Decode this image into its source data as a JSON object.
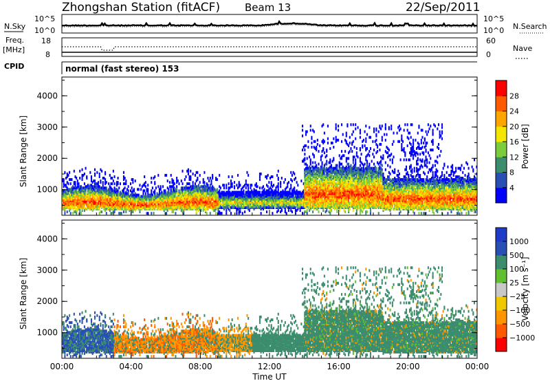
{
  "header": {
    "station": "Zhongshan Station (fitACF)",
    "beam": "Beam 13",
    "date": "22/Sep/2011"
  },
  "top_panels": {
    "nsky_label": "N.Sky",
    "nsky_ticks": [
      "10^5",
      "10^0"
    ],
    "nsearch_label": "N.Search",
    "nsearch_ticks": [
      "10^5",
      "10^0"
    ],
    "freq_label_1": "Freq.",
    "freq_label_2": "[MHz]",
    "freq_ticks": [
      "18",
      "8"
    ],
    "nave_label": "Nave",
    "nave_ticks": [
      "60",
      "0"
    ],
    "cpid_label": "CPID",
    "cpid_text": "normal (fast stereo) 153"
  },
  "chart_data": [
    {
      "type": "heatmap",
      "name": "power-panel",
      "ylabel": "Slant Range [km]",
      "yticks": [
        "4000",
        "3000",
        "2000",
        "1000"
      ],
      "ylim": [
        180,
        4600
      ],
      "xlim": [
        0,
        24
      ],
      "colorbar_label": "Power [dB]",
      "colorbar_ticks": [
        "28",
        "24",
        "20",
        "16",
        "12",
        "8",
        "4"
      ],
      "colors": [
        "#0000ff",
        "#2a4fb4",
        "#3c8c6e",
        "#7ccd3c",
        "#f5e600",
        "#ffa500",
        "#ff5a00",
        "#ff0000"
      ]
    },
    {
      "type": "heatmap",
      "name": "velocity-panel",
      "ylabel": "Slant Range [km]",
      "yticks": [
        "4000",
        "3000",
        "2000",
        "1000"
      ],
      "ylim": [
        180,
        4600
      ],
      "xlim": [
        0,
        24
      ],
      "xlabel": "Time UT",
      "xticks": [
        "00:00",
        "04:00",
        "08:00",
        "12:00",
        "16:00",
        "20:00",
        "00:00"
      ],
      "colorbar_label": "Velocity [m s⁻¹]",
      "colorbar_ticks": [
        "1000",
        "500",
        "100",
        "25",
        "−25",
        "−100",
        "−500",
        "−1000"
      ],
      "colors": [
        "#ff0000",
        "#ff5a00",
        "#ff9600",
        "#f0c800",
        "#c8c8c8",
        "#60c030",
        "#3c8c6e",
        "#2a4fb4",
        "#1e3cc8"
      ]
    }
  ]
}
